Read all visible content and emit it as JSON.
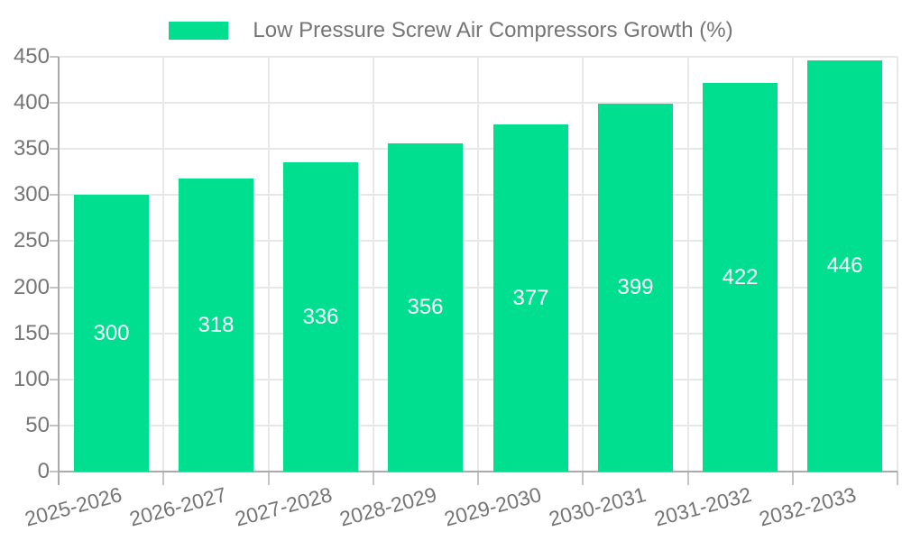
{
  "legend": {
    "label": "Low Pressure Screw Air Compressors Growth (%)"
  },
  "colors": {
    "bar": "#00DF90",
    "grid": "#E8E8E8",
    "axis": "#ABABAB",
    "tick": "#C4C4C4",
    "axis_text": "#757575",
    "value_text": "#FFFFFF",
    "background": "#FFFFFF"
  },
  "chart_data": {
    "type": "bar",
    "title": "Low Pressure Screw Air Compressors Growth (%)",
    "categories": [
      "2025-2026",
      "2026-2027",
      "2027-2028",
      "2028-2029",
      "2029-2030",
      "2030-2031",
      "2031-2032",
      "2032-2033"
    ],
    "series": [
      {
        "name": "Low Pressure Screw Air Compressors Growth (%)",
        "values": [
          300,
          318,
          336,
          356,
          377,
          399,
          422,
          446
        ]
      }
    ],
    "value_labels": [
      "300",
      "318",
      "336",
      "356",
      "377",
      "399",
      "422",
      "446"
    ],
    "value_label_position": "inside-center",
    "xlabel": "",
    "ylabel": "",
    "ylim": [
      0,
      450
    ],
    "ytick_step": 50,
    "ytick_labels": [
      "0",
      "50",
      "100",
      "150",
      "200",
      "250",
      "300",
      "350",
      "400",
      "450"
    ],
    "grid": "both",
    "legend_position": "top-center",
    "bar_color": "#00DF90",
    "x_label_rotation_deg": -15
  }
}
